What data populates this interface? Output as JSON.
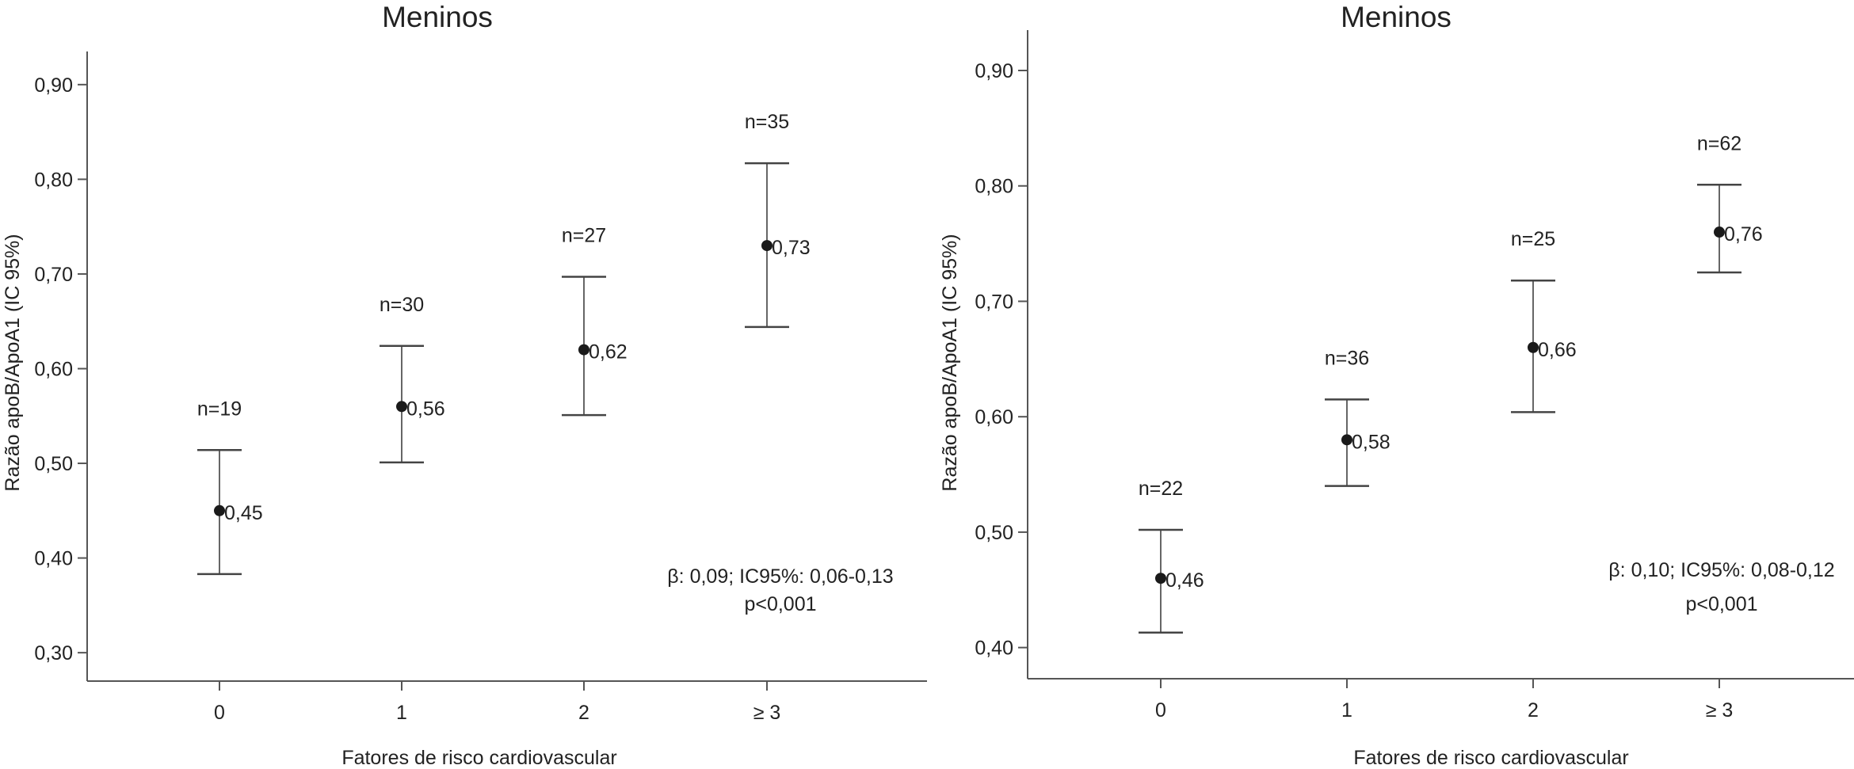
{
  "chart_data": [
    {
      "type": "errorbar",
      "title": "Meninos",
      "xlabel": "Fatores de risco cardiovascular",
      "ylabel": "Razão apoB/ApoA1 (IC 95%)",
      "categories": [
        "0",
        "1",
        "2",
        "≥ 3"
      ],
      "values": [
        0.45,
        0.56,
        0.62,
        0.73
      ],
      "value_labels": [
        "0,45",
        "0,56",
        "0,62",
        "0,73"
      ],
      "ci_lower": [
        0.383,
        0.501,
        0.551,
        0.644
      ],
      "ci_upper": [
        0.514,
        0.624,
        0.697,
        0.817
      ],
      "n_labels": [
        "n=19",
        "n=30",
        "n=27",
        "n=35"
      ],
      "ylim": [
        0.27,
        0.935
      ],
      "yticks": [
        0.3,
        0.4,
        0.5,
        0.6,
        0.7,
        0.8,
        0.9
      ],
      "ytick_labels": [
        "0,30",
        "0,40",
        "0,50",
        "0,60",
        "0,70",
        "0,80",
        "0,90"
      ],
      "annotation": [
        "β: 0,09; IC95%: 0,06-0,13",
        "p<0,001"
      ]
    },
    {
      "type": "errorbar",
      "title": "Meninos",
      "xlabel": "Fatores de risco cardiovascular",
      "ylabel": "Razão apoB/ApoA1 (IC 95%)",
      "categories": [
        "0",
        "1",
        "2",
        "≥ 3"
      ],
      "values": [
        0.46,
        0.58,
        0.66,
        0.76
      ],
      "value_labels": [
        "0,46",
        "0,58",
        "0,66",
        "0,76"
      ],
      "ci_lower": [
        0.413,
        0.54,
        0.604,
        0.725
      ],
      "ci_upper": [
        0.502,
        0.615,
        0.718,
        0.801
      ],
      "n_labels": [
        "n=22",
        "n=36",
        "n=25",
        "n=62"
      ],
      "ylim": [
        0.373,
        0.935
      ],
      "yticks": [
        0.4,
        0.5,
        0.6,
        0.7,
        0.8,
        0.9
      ],
      "ytick_labels": [
        "0,40",
        "0,50",
        "0,60",
        "0,70",
        "0,80",
        "0,90"
      ],
      "annotation": [
        "β: 0,10; IC95%: 0,08-0,12",
        "p<0,001"
      ]
    }
  ]
}
